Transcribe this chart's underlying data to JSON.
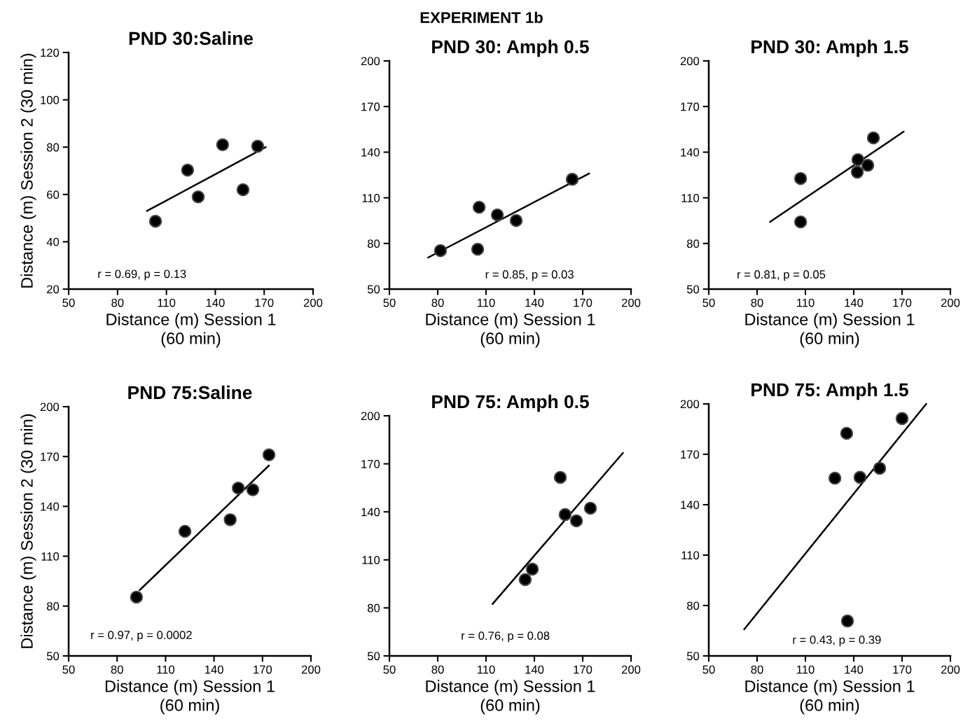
{
  "chart_data": [
    {
      "type": "scatter",
      "title": "PND 30:Saline",
      "xlabel": "Distance (m) Session 1\n(60 min)",
      "ylabel": "Distance (m) Session 2 (30 min)",
      "xlim": [
        50,
        200
      ],
      "xticks": [
        50,
        80,
        110,
        140,
        170,
        200
      ],
      "ylim": [
        20,
        120
      ],
      "yticks": [
        20,
        40,
        60,
        80,
        100,
        120
      ],
      "annotations": [
        "EXPERIMENT 1b",
        "r = 0.69, p = 0.13"
      ],
      "series": [
        {
          "marker": "circle",
          "color": "#000000",
          "x": [
            103.3,
            123,
            129.5,
            144.5,
            157,
            166
          ],
          "values": [
            48.7,
            70.3,
            59,
            81,
            62,
            80.4
          ]
        },
        {
          "type": "line",
          "color": "#000000",
          "x": [
            98,
            171
          ],
          "values": [
            53,
            80
          ]
        }
      ]
    },
    {
      "type": "scatter",
      "title": "PND 30: Amph 0.5",
      "xlabel": "Distance (m) Session 1\n(60 min)",
      "xlim": [
        50,
        200
      ],
      "xticks": [
        50,
        80,
        110,
        140,
        170,
        200
      ],
      "ylim": [
        50,
        200
      ],
      "yticks": [
        50,
        80,
        110,
        140,
        170,
        200
      ],
      "annotations": [
        "r = 0.85, p = 0.03"
      ],
      "series": [
        {
          "marker": "circle",
          "color": "#000000",
          "x": [
            81.7,
            105.7,
            104.8,
            117,
            128.7,
            163.5
          ],
          "values": [
            75.3,
            103.8,
            76.2,
            98.8,
            95.1,
            122.2
          ]
        },
        {
          "type": "line",
          "color": "#000000",
          "x": [
            74,
            174
          ],
          "values": [
            70.7,
            126
          ]
        }
      ]
    },
    {
      "type": "scatter",
      "title": "PND 30: Amph 1.5",
      "xlabel": "Distance (m) Session 1\n(60 min)",
      "xlim": [
        50,
        200
      ],
      "xticks": [
        50,
        80,
        110,
        140,
        170,
        200
      ],
      "ylim": [
        50,
        200
      ],
      "yticks": [
        50,
        80,
        110,
        140,
        170,
        200
      ],
      "annotations": [
        "r = 0.81, p = 0.05"
      ],
      "series": [
        {
          "marker": "circle",
          "color": "#000000",
          "x": [
            107,
            107,
            142.6,
            142.2,
            148.7,
            152.2
          ],
          "values": [
            122.7,
            94.2,
            135.1,
            126.9,
            131.4,
            149.4
          ]
        },
        {
          "type": "line",
          "color": "#000000",
          "x": [
            88,
            171
          ],
          "values": [
            94.2,
            153.5
          ]
        }
      ]
    },
    {
      "type": "scatter",
      "title": "PND 75:Saline",
      "xlabel": "Distance (m) Session 1\n(60 min)",
      "ylabel": "Distance (m) Session 2 (30 min)",
      "xlim": [
        50,
        200
      ],
      "xticks": [
        50,
        80,
        110,
        140,
        170,
        200
      ],
      "ylim": [
        50,
        200
      ],
      "yticks": [
        50,
        80,
        110,
        140,
        170,
        200
      ],
      "annotations": [
        "r = 0.97, p = 0.0002"
      ],
      "series": [
        {
          "marker": "circle",
          "color": "#000000",
          "x": [
            92,
            122,
            150,
            155,
            164,
            174
          ],
          "values": [
            85.4,
            125,
            132,
            151,
            150,
            171
          ]
        },
        {
          "type": "line",
          "color": "#000000",
          "x": [
            94,
            174
          ],
          "values": [
            89.6,
            164.6
          ]
        }
      ]
    },
    {
      "type": "scatter",
      "title": "PND 75: Amph 0.5",
      "xlabel": "Distance (m) Session 1\n(60 min)",
      "xlim": [
        50,
        200
      ],
      "xticks": [
        50,
        80,
        110,
        140,
        170,
        200
      ],
      "ylim": [
        50,
        200
      ],
      "yticks": [
        50,
        80,
        110,
        140,
        170,
        200
      ],
      "annotations": [
        "r = 0.76, p = 0.08"
      ],
      "series": [
        {
          "marker": "circle",
          "color": "#000000",
          "x": [
            134.3,
            138.7,
            156.1,
            159.1,
            166.1,
            174.8
          ],
          "values": [
            97.7,
            104.2,
            161.5,
            138.3,
            134.4,
            142.3
          ]
        },
        {
          "type": "line",
          "color": "#000000",
          "x": [
            114,
            195
          ],
          "values": [
            82.4,
            176.8
          ]
        }
      ]
    },
    {
      "type": "scatter",
      "title": "PND 75: Amph 1.5",
      "xlabel": "Distance (m) Session 1\n(60 min)",
      "xlim": [
        50,
        200
      ],
      "xticks": [
        50,
        80,
        110,
        140,
        170,
        200
      ],
      "ylim": [
        50,
        200
      ],
      "yticks": [
        50,
        80,
        110,
        140,
        170,
        200
      ],
      "annotations": [
        "r = 0.43, p = 0.39"
      ],
      "series": [
        {
          "marker": "circle",
          "color": "#000000",
          "x": [
            128.3,
            135.6,
            136.1,
            143.9,
            156.1,
            170
          ],
          "values": [
            155.8,
            182.5,
            70.8,
            156.3,
            161.7,
            191.3
          ]
        },
        {
          "type": "line",
          "color": "#000000",
          "x": [
            72,
            185
          ],
          "values": [
            65.8,
            200
          ]
        }
      ]
    }
  ]
}
